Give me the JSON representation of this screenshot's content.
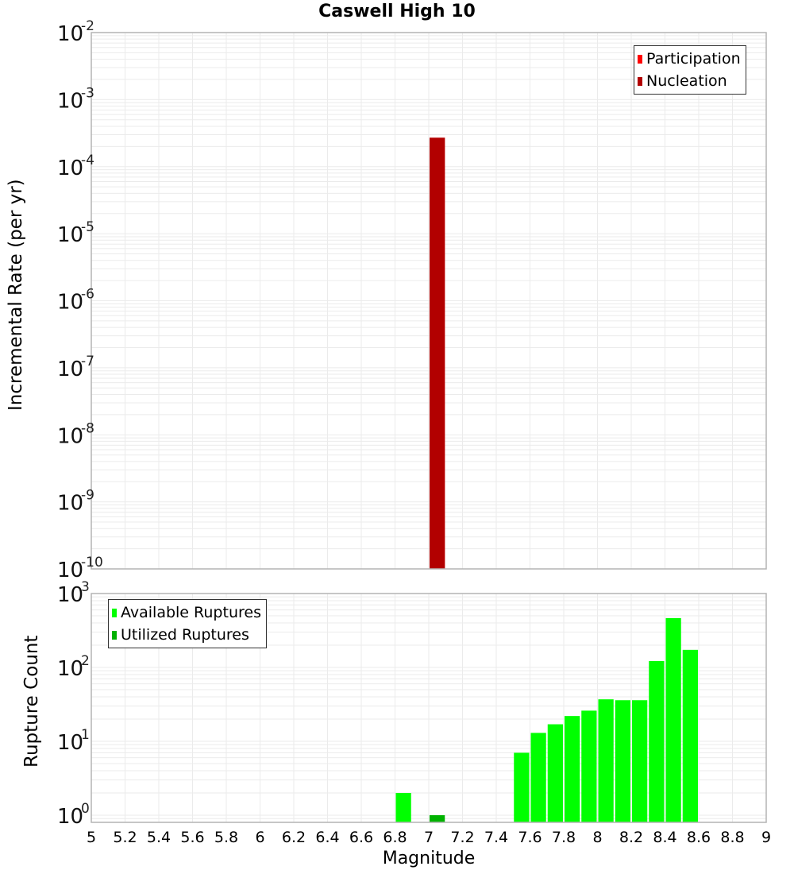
{
  "title": "Caswell High 10",
  "colors": {
    "participation": "#ff0000",
    "nucleation": "#b20000",
    "available": "#00ff00",
    "utilized": "#00b200",
    "grid": "#ebebeb",
    "axis": "#b4b4b4"
  },
  "upper": {
    "ylabel": "Incremental Rate (per yr)",
    "legend": [
      {
        "label": "Participation",
        "color_key": "participation"
      },
      {
        "label": "Nucleation",
        "color_key": "nucleation"
      }
    ]
  },
  "lower": {
    "ylabel": "Rupture Count",
    "legend": [
      {
        "label": "Available Ruptures",
        "color_key": "available"
      },
      {
        "label": "Utilized Ruptures",
        "color_key": "utilized"
      }
    ]
  },
  "xlabel": "Magnitude",
  "chart_data": [
    {
      "type": "bar",
      "title": "Caswell High 10",
      "xlabel": "",
      "ylabel": "Incremental Rate (per yr)",
      "yscale": "log",
      "ylim": [
        1e-10,
        0.01
      ],
      "xlim": [
        5,
        9
      ],
      "ytick_exponents": [
        -2,
        -3,
        -4,
        -5,
        -6,
        -7,
        -8,
        -9,
        -10
      ],
      "grid": true,
      "legend_position": "top-right",
      "series": [
        {
          "name": "Participation",
          "color": "#ff0000",
          "x": [
            7.05
          ],
          "values": [
            0.00027
          ]
        },
        {
          "name": "Nucleation",
          "color": "#b20000",
          "x": [
            7.05
          ],
          "values": [
            0.00027
          ]
        }
      ]
    },
    {
      "type": "bar",
      "title": "",
      "xlabel": "Magnitude",
      "ylabel": "Rupture Count",
      "yscale": "log",
      "ylim": [
        0.8,
        1000
      ],
      "xlim": [
        5,
        9
      ],
      "ytick_exponents": [
        3,
        2,
        1,
        0
      ],
      "xticks": [
        "5",
        "5.2",
        "5.4",
        "5.6",
        "5.8",
        "6",
        "6.2",
        "6.4",
        "6.6",
        "6.8",
        "7",
        "7.2",
        "7.4",
        "7.6",
        "7.8",
        "8",
        "8.2",
        "8.4",
        "8.6",
        "8.8",
        "9"
      ],
      "grid": true,
      "legend_position": "top-left",
      "series": [
        {
          "name": "Available Ruptures",
          "color": "#00ff00",
          "x": [
            6.85,
            7.55,
            7.65,
            7.75,
            7.85,
            7.95,
            8.05,
            8.15,
            8.25,
            8.35,
            8.45,
            8.55
          ],
          "values": [
            2,
            7,
            13,
            17,
            22,
            26,
            37,
            36,
            36,
            122,
            465,
            173
          ]
        },
        {
          "name": "Utilized Ruptures",
          "color": "#00b200",
          "x": [
            7.05
          ],
          "values": [
            1
          ]
        }
      ]
    }
  ]
}
